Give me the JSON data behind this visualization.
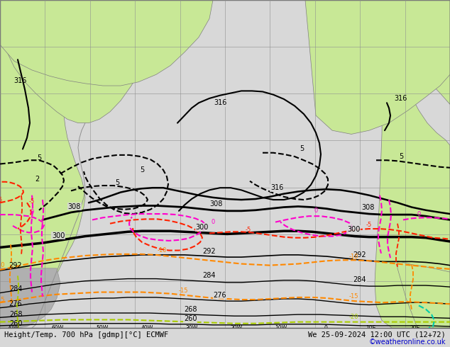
{
  "title_left": "Height/Temp. 700 hPa [gdmp][°C] ECMWF",
  "title_right": "We 25-09-2024 12:00 UTC (12+72)",
  "copyright": "©weatheronline.co.uk",
  "background_land": "#c8e896",
  "background_sea": "#d8d8d8",
  "border_color": "#606060",
  "grid_color": "#909090",
  "font_size_title": 8.0,
  "fig_width": 6.34,
  "fig_height": 4.9,
  "dpi": 100
}
